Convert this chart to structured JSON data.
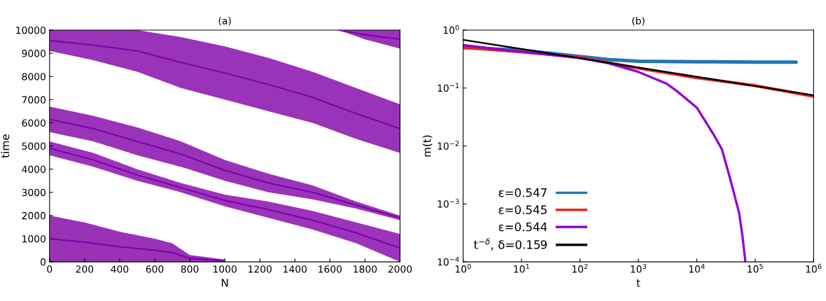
{
  "chart_data": [
    {
      "type": "line",
      "title": "(a)",
      "xlabel": "N",
      "ylabel": "time",
      "xlim": [
        0,
        2000
      ],
      "ylim": [
        0,
        10000
      ],
      "xticks": [
        0,
        200,
        400,
        600,
        800,
        1000,
        1200,
        1400,
        1600,
        1800,
        2000
      ],
      "yticks": [
        0,
        1000,
        2000,
        3000,
        4000,
        5000,
        6000,
        7000,
        8000,
        9000,
        10000
      ],
      "grid": false,
      "legend": false,
      "series": [
        {
          "color": "#8000a8",
          "x": [
            0,
            250,
            500,
            750,
            1000,
            1250,
            1500,
            1750,
            2000
          ],
          "values": [
            9550,
            9350,
            9100,
            8600,
            8150,
            7650,
            7100,
            6400,
            5750
          ],
          "lower": [
            9100,
            8700,
            8200,
            7500,
            7000,
            6500,
            6000,
            5300,
            4700
          ],
          "upper": [
            10000,
            10000,
            10000,
            9700,
            9300,
            8800,
            8200,
            7500,
            6800
          ]
        },
        {
          "color": "#8100a9",
          "x": [
            1650,
            1800,
            2000
          ],
          "values": [
            10000,
            9800,
            9600
          ],
          "lower": [
            10000,
            9600,
            9200
          ],
          "upper": [
            10000,
            10000,
            10000
          ]
        },
        {
          "color": "#7f00a7",
          "x": [
            0,
            250,
            500,
            750,
            1000,
            1250,
            1500,
            1750,
            2000
          ],
          "values": [
            6150,
            5750,
            5200,
            4650,
            3950,
            3400,
            3000,
            2450,
            1900
          ],
          "lower": [
            5600,
            5200,
            4600,
            4100,
            3500,
            3000,
            2700,
            2300,
            1800
          ],
          "upper": [
            6700,
            6300,
            5800,
            5200,
            4400,
            3800,
            3300,
            2600,
            2000
          ]
        },
        {
          "color": "#8200aa",
          "x": [
            0,
            250,
            500,
            750,
            1000,
            1250,
            1500,
            1750,
            2000
          ],
          "values": [
            4900,
            4400,
            3750,
            3200,
            2650,
            2250,
            1800,
            1250,
            600
          ],
          "lower": [
            4600,
            4100,
            3500,
            3000,
            2400,
            1900,
            1400,
            800,
            0
          ],
          "upper": [
            5200,
            4700,
            4000,
            3400,
            2900,
            2600,
            2200,
            1700,
            1200
          ]
        },
        {
          "color": "#7e00a6",
          "x": [
            0,
            200,
            400,
            600,
            700,
            800,
            1000
          ],
          "values": [
            1000,
            850,
            650,
            500,
            400,
            150,
            50
          ],
          "lower": [
            0,
            0,
            0,
            0,
            0,
            0,
            0
          ],
          "upper": [
            2000,
            1700,
            1300,
            1000,
            800,
            300,
            100
          ]
        }
      ]
    },
    {
      "type": "line",
      "title": "(b)",
      "xlabel": "t",
      "ylabel": "m(t)",
      "log": "xy",
      "xlim": [
        1,
        1000000
      ],
      "ylim": [
        0.0001,
        1
      ],
      "xticks": [
        {
          "value": 1,
          "label": "10$^{0}$"
        },
        {
          "value": 10,
          "label": "10$^{1}$"
        },
        {
          "value": 100,
          "label": "10$^{2}$"
        },
        {
          "value": 1000,
          "label": "10$^{3}$"
        },
        {
          "value": 10000,
          "label": "10$^{4}$"
        },
        {
          "value": 100000,
          "label": "10$^{5}$"
        },
        {
          "value": 1000000,
          "label": "10$^{6}$"
        }
      ],
      "yticks": [
        {
          "value": 0.0001,
          "label": "10$^{−4}$"
        },
        {
          "value": 0.001,
          "label": "10$^{−3}$"
        },
        {
          "value": 0.01,
          "label": "10$^{−2}$"
        },
        {
          "value": 0.1,
          "label": "10$^{−1}$"
        },
        {
          "value": 1,
          "label": "10$^{0}$"
        }
      ],
      "grid": false,
      "legend": "lower left",
      "series": [
        {
          "name": "ε=0.547",
          "color": "#1f77b4",
          "x": [
            1,
            10,
            100,
            300,
            1000,
            10000,
            100000,
            500000
          ],
          "values": [
            0.5,
            0.45,
            0.35,
            0.31,
            0.29,
            0.285,
            0.28,
            0.28
          ]
        },
        {
          "name": "ε=0.545",
          "color": "#e8261c",
          "x": [
            1,
            10,
            100,
            1000,
            10000,
            100000,
            1000000
          ],
          "values": [
            0.5,
            0.42,
            0.34,
            0.22,
            0.15,
            0.11,
            0.072
          ]
        },
        {
          "name": "ε=0.544",
          "color": "#9400d3",
          "x": [
            1,
            10,
            100,
            300,
            1000,
            3000,
            4600,
            10000,
            20000,
            27000,
            39000,
            53000,
            60000,
            68000
          ],
          "values": [
            0.55,
            0.42,
            0.33,
            0.27,
            0.19,
            0.12,
            0.088,
            0.046,
            0.015,
            0.0087,
            0.0023,
            0.0007,
            0.0003,
            0.0001
          ]
        },
        {
          "name": "t$^{−δ}$, δ=0.159",
          "color": "#000000",
          "x": [
            1,
            1000000
          ],
          "values": [
            0.68,
            0.075
          ]
        }
      ]
    }
  ]
}
